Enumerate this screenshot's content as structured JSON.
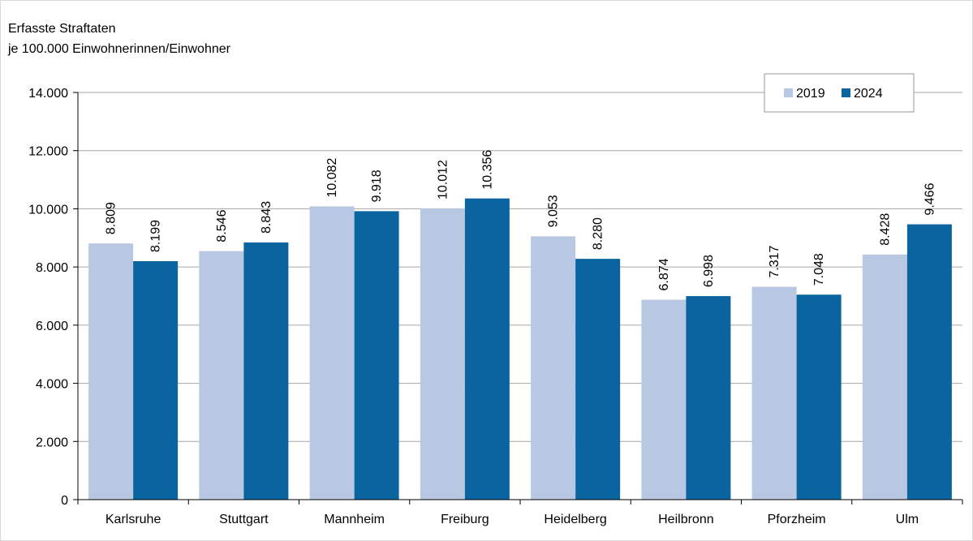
{
  "chart_data": {
    "type": "bar",
    "title_line1": "Erfasste Straftaten",
    "title_line2": "je 100.000 Einwohnerinnen/Einwohner",
    "categories": [
      "Karlsruhe",
      "Stuttgart",
      "Mannheim",
      "Freiburg",
      "Heidelberg",
      "Heilbronn",
      "Pforzheim",
      "Ulm"
    ],
    "series": [
      {
        "name": "2019",
        "color": "#b8c8e2",
        "values": [
          8809,
          8546,
          10082,
          10012,
          9053,
          6874,
          7317,
          8428
        ],
        "labels": [
          "8.809",
          "8.546",
          "10.082",
          "10.012",
          "9.053",
          "6.874",
          "7.317",
          "8.428"
        ]
      },
      {
        "name": "2024",
        "color": "#0a64a0",
        "values": [
          8199,
          8843,
          9918,
          10356,
          8280,
          6998,
          7048,
          9466
        ],
        "labels": [
          "8.199",
          "8.843",
          "9.918",
          "10.356",
          "8.280",
          "6.998",
          "7.048",
          "9.466"
        ]
      }
    ],
    "ylim": [
      0,
      14000
    ],
    "yticks": [
      0,
      2000,
      4000,
      6000,
      8000,
      10000,
      12000,
      14000
    ],
    "ytick_labels": [
      "0",
      "2.000",
      "4.000",
      "6.000",
      "8.000",
      "10.000",
      "12.000",
      "14.000"
    ],
    "grid": true,
    "legend_position": "top-right"
  }
}
